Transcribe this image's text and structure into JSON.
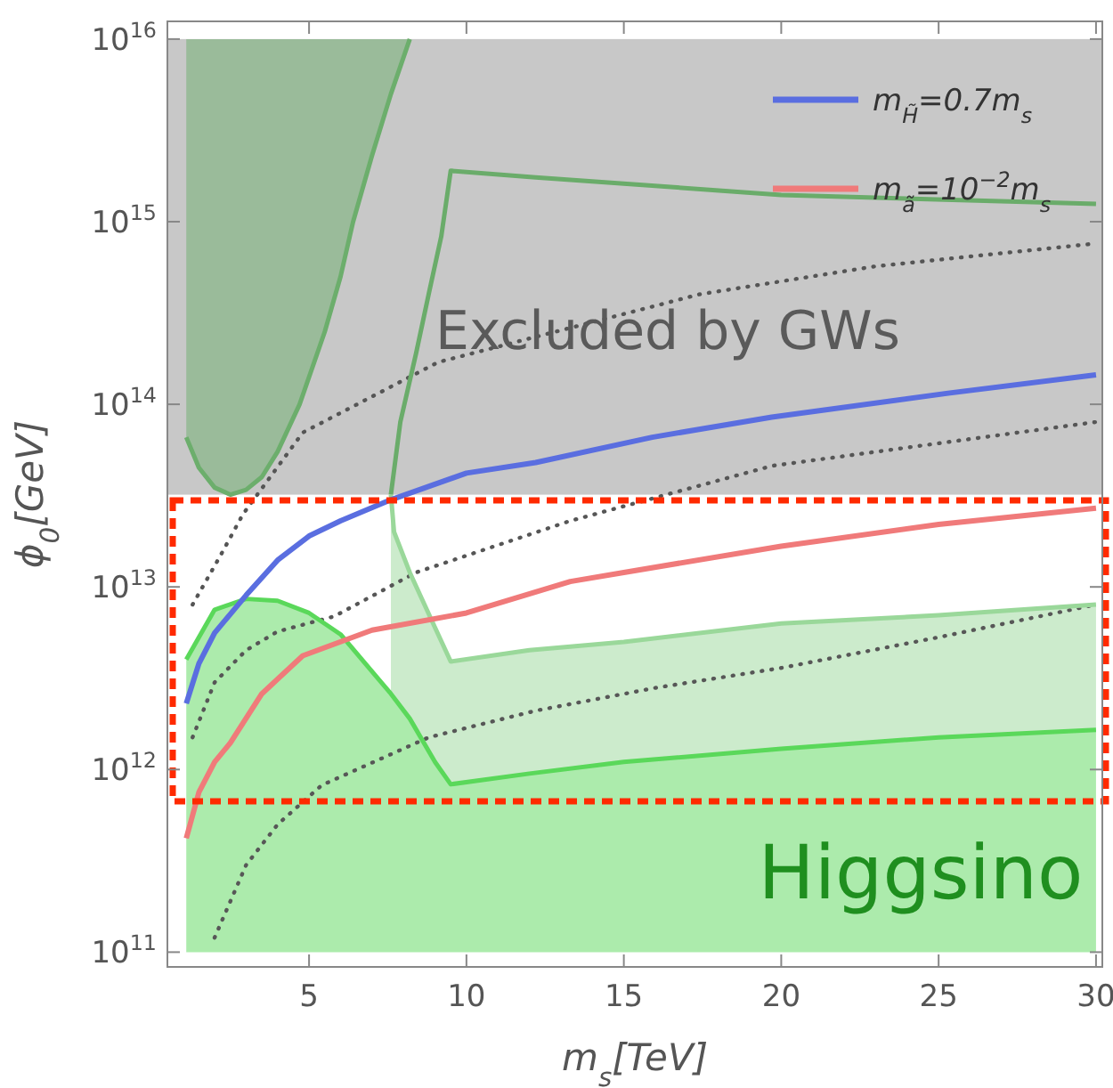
{
  "chart_data": {
    "type": "line",
    "xlabel": "m$_{s}$[TeV]",
    "ylabel": "ϕ$_{0}$[GeV]",
    "log": "y",
    "legend": "top right",
    "xlim": [
      0.5,
      30.2
    ],
    "ylim": [
      83000000000.0,
      1.25e+16
    ],
    "xticks": [
      5,
      10,
      15,
      20,
      25,
      30
    ],
    "yticks": [
      {
        "value": 100000000000.0,
        "label": "10$^{11}$"
      },
      {
        "value": 1000000000000.0,
        "label": "10$^{12}$"
      },
      {
        "value": 10000000000000.0,
        "label": "10$^{13}$"
      },
      {
        "value": 100000000000000.0,
        "label": "10$^{14}$"
      },
      {
        "value": 1000000000000000.0,
        "label": "10$^{15}$"
      },
      {
        "value": 1e+16,
        "label": "10$^{16}$"
      }
    ],
    "annotations": [
      "Excluded by GWs",
      "Higgsino"
    ],
    "bands": [
      {
        "axis": "y",
        "from": 32000000000000.0,
        "to": 1e+16,
        "color": "#c8c8c8"
      }
    ],
    "series": [
      {
        "color": "#555555",
        "line_style": "dotted",
        "x": [
          1.3,
          2.2,
          2.9,
          4.8,
          9.1,
          17.4,
          23,
          30
        ],
        "values": [
          8000000000000.0,
          15000000000000.0,
          25000000000000.0,
          70000000000000.0,
          170000000000000.0,
          400000000000000.0,
          570000000000000.0,
          760000000000000.0
        ]
      },
      {
        "color": "#565656",
        "line_style": "dotted",
        "x": [
          1.3,
          2,
          3,
          4,
          5.8,
          8.4,
          13.3,
          19.7,
          30
        ],
        "values": [
          1500000000000.0,
          3000000000000.0,
          4500000000000.0,
          5700000000000.0,
          6900000000000.0,
          12000000000000.0,
          23000000000000.0,
          46000000000000.0,
          80000000000000.0
        ]
      },
      {
        "color": "#575757",
        "line_style": "dotted",
        "x": [
          2,
          3,
          4,
          5.4,
          8.8,
          12.2,
          16,
          20,
          25,
          30
        ],
        "values": [
          120000000000.0,
          300000000000.0,
          500000000000.0,
          820000000000.0,
          1500000000000.0,
          2100000000000.0,
          2800000000000.0,
          3600000000000.0,
          5300000000000.0,
          8000000000000.0
        ]
      },
      {
        "color": "#6cae6c",
        "x": [
          1.1,
          1.5,
          2,
          2.5,
          3,
          3.5,
          4,
          4.7,
          5.5,
          6,
          6.4,
          7,
          7.6,
          8.2
        ],
        "values": [
          66000000000000.0,
          45000000000000.0,
          35000000000000.0,
          32000000000000.0,
          34000000000000.0,
          40000000000000.0,
          55000000000000.0,
          100000000000000.0,
          250000000000000.0,
          500000000000000.0,
          1000000000000000.0,
          2300000000000000.0,
          5000000000000000.0,
          1e+16
        ],
        "lower": [
          66000000000000.0,
          45000000000000.0,
          35000000000000.0,
          32000000000000.0,
          34000000000000.0,
          40000000000000.0,
          55000000000000.0,
          100000000000000.0,
          250000000000000.0,
          500000000000000.0,
          1000000000000000.0,
          2300000000000000.0,
          5000000000000000.0,
          1e+16
        ],
        "upper": [
          1e+16,
          1e+16,
          1e+16,
          1e+16,
          1e+16,
          1e+16,
          1e+16,
          1e+16,
          1e+16,
          1e+16,
          1e+16,
          1e+16,
          1e+16,
          1e+16
        ]
      },
      {
        "color": "#6aac6a",
        "x": [
          7.6,
          7.9,
          8.4,
          8.8,
          9.2,
          9.5,
          12.2,
          20,
          30
        ],
        "values": [
          32000000000000.0,
          80000000000000.0,
          190000000000000.0,
          400000000000000.0,
          830000000000000.0,
          1900000000000000.0,
          1750000000000000.0,
          1400000000000000.0,
          1250000000000000.0
        ]
      },
      {
        "color": "#9ad89a",
        "x": [
          7.6,
          7.7,
          8.2,
          9,
          9.5,
          12,
          15,
          20,
          25,
          30
        ],
        "values": [
          32000000000000.0,
          20000000000000.0,
          12000000000000.0,
          6000000000000.0,
          3900000000000.0,
          4500000000000.0,
          5000000000000.0,
          6300000000000.0,
          7000000000000.0,
          8000000000000.0
        ],
        "lower": [
          2600000000000.0,
          2400000000000.0,
          1900000000000.0,
          1100000000000.0,
          830000000000.0,
          950000000000.0,
          1100000000000.0,
          1300000000000.0,
          1500000000000.0,
          1650000000000.0
        ],
        "upper": [
          32000000000000.0,
          20000000000000.0,
          12000000000000.0,
          6000000000000.0,
          3900000000000.0,
          4500000000000.0,
          5000000000000.0,
          6300000000000.0,
          7000000000000.0,
          8000000000000.0
        ]
      },
      {
        "color": "#5ad85a",
        "x": [
          1.1,
          2,
          3,
          4,
          5,
          6,
          7.6,
          8.2,
          9,
          9.5,
          12,
          15,
          20,
          25,
          30
        ],
        "values": [
          4000000000000.0,
          7500000000000.0,
          8600000000000.0,
          8400000000000.0,
          7200000000000.0,
          5500000000000.0,
          2600000000000.0,
          1900000000000.0,
          1100000000000.0,
          830000000000.0,
          950000000000.0,
          1100000000000.0,
          1300000000000.0,
          1500000000000.0,
          1650000000000.0
        ],
        "lower": [
          100000000000.0,
          100000000000.0,
          100000000000.0,
          100000000000.0,
          100000000000.0,
          100000000000.0,
          100000000000.0,
          100000000000.0,
          100000000000.0,
          100000000000.0,
          100000000000.0,
          100000000000.0,
          100000000000.0,
          100000000000.0,
          100000000000.0
        ],
        "upper": [
          4000000000000.0,
          7500000000000.0,
          8600000000000.0,
          8400000000000.0,
          7200000000000.0,
          5500000000000.0,
          2600000000000.0,
          1900000000000.0,
          1100000000000.0,
          830000000000.0,
          950000000000.0,
          1100000000000.0,
          1300000000000.0,
          1500000000000.0,
          1650000000000.0
        ]
      },
      {
        "name": "m$_{H̃}$=0.7m$_{s}$",
        "color": "#5a6ee0",
        "x": [
          1.1,
          1.5,
          2,
          3,
          4,
          5,
          6,
          7.6,
          10,
          12.2,
          15.9,
          19.7,
          25.3,
          30
        ],
        "values": [
          2300000000000.0,
          3800000000000.0,
          5600000000000.0,
          9000000000000.0,
          14000000000000.0,
          19000000000000.0,
          23000000000000.0,
          30000000000000.0,
          42000000000000.0,
          48000000000000.0,
          66000000000000.0,
          85000000000000.0,
          115000000000000.0,
          145000000000000.0
        ]
      },
      {
        "name": "m$_{ã}$=10$^{−2}$m$_{s}$",
        "color": "#f07a7a",
        "x": [
          1.1,
          1.5,
          2,
          2.5,
          3.5,
          4.8,
          7,
          10,
          13.3,
          15,
          20,
          25,
          30
        ],
        "values": [
          420000000000.0,
          750000000000.0,
          1100000000000.0,
          1400000000000.0,
          2600000000000.0,
          4200000000000.0,
          5800000000000.0,
          7200000000000.0,
          10700000000000.0,
          12000000000000.0,
          16700000000000.0,
          22000000000000.0,
          27000000000000.0
        ]
      }
    ]
  }
}
